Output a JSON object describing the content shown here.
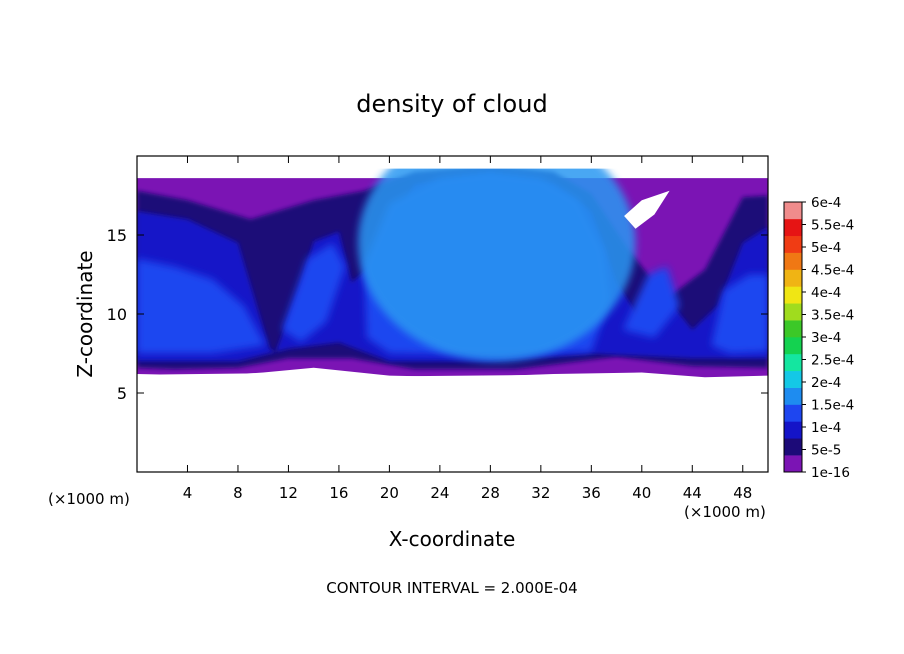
{
  "chart_data": {
    "type": "heatmap",
    "subtype": "filled-contour",
    "title": "density of cloud",
    "xlabel": "X-coordinate",
    "ylabel": "Z-coordinate",
    "x_unit_left": "(×1000 m)",
    "x_unit_right": "(×1000 m)",
    "xlim": [
      0,
      50
    ],
    "ylim": [
      0,
      20
    ],
    "x_ticks": [
      4,
      8,
      12,
      16,
      20,
      24,
      28,
      32,
      36,
      40,
      44,
      48
    ],
    "y_ticks": [
      5,
      10,
      15
    ],
    "footer": "CONTOUR INTERVAL = 2.000E-04",
    "colorbar": {
      "labels": [
        "1e-16",
        "5e-5",
        "1e-4",
        "1.5e-4",
        "2e-4",
        "2.5e-4",
        "3e-4",
        "3.5e-4",
        "4e-4",
        "4.5e-4",
        "5e-4",
        "5.5e-4",
        "6e-4"
      ],
      "colors": [
        "#7b14b4",
        "#1c0a78",
        "#1414c8",
        "#1e46f0",
        "#1e8cf0",
        "#14c8e6",
        "#14e6a0",
        "#14d250",
        "#3cc828",
        "#a0dc1e",
        "#f0e614",
        "#f0b414",
        "#f07814",
        "#f03c14",
        "#e61414",
        "#f08c8c"
      ]
    },
    "field_regions": {
      "cloud_layer_z": [
        6.2,
        18.6
      ],
      "core_1": {
        "x": [
          0,
          10.5
        ],
        "z": [
          7.0,
          13.5
        ]
      },
      "core_2": {
        "x": [
          18,
          37
        ],
        "z": [
          7.0,
          19.2
        ]
      },
      "core_3": {
        "x": [
          45,
          50
        ],
        "z": [
          7.0,
          12.5
        ]
      },
      "clear_hole": {
        "x": [
          38.5,
          42.5
        ],
        "z": [
          15.5,
          17.5
        ]
      }
    }
  }
}
